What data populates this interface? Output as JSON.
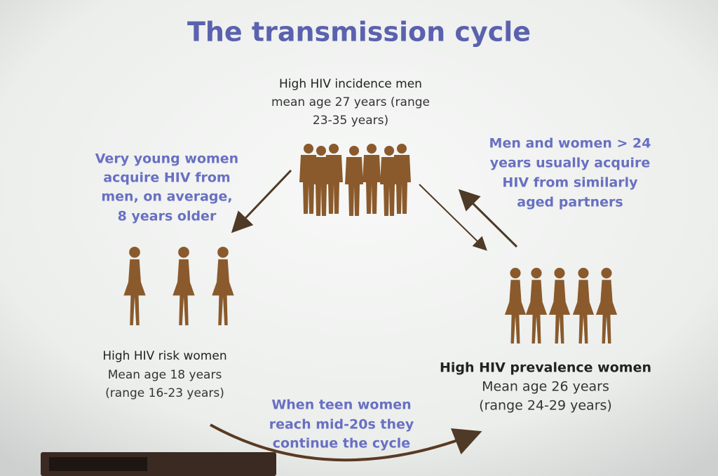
{
  "title": "The transmission cycle",
  "nodes": [
    {
      "label": "High HIV incidence men",
      "lines": [
        "mean age 27 years (range",
        "23-35 years)"
      ]
    },
    {
      "label": "High HIV risk women",
      "lines": [
        "Mean age 18 years",
        "(range 16-23 years)"
      ]
    },
    {
      "label": "High HIV prevalence women",
      "lines": [
        "Mean age 26 years",
        "(range 24-29 years)"
      ]
    }
  ],
  "edges": [
    {
      "lines": [
        "Very young women",
        "acquire HIV from",
        "men, on average,",
        "8 years older"
      ]
    },
    {
      "lines": [
        "Men and women > 24",
        "years usually acquire",
        "HIV from similarly",
        "aged partners"
      ]
    },
    {
      "lines": [
        "When teen women",
        "reach mid-20s they",
        "continue the cycle"
      ]
    }
  ]
}
